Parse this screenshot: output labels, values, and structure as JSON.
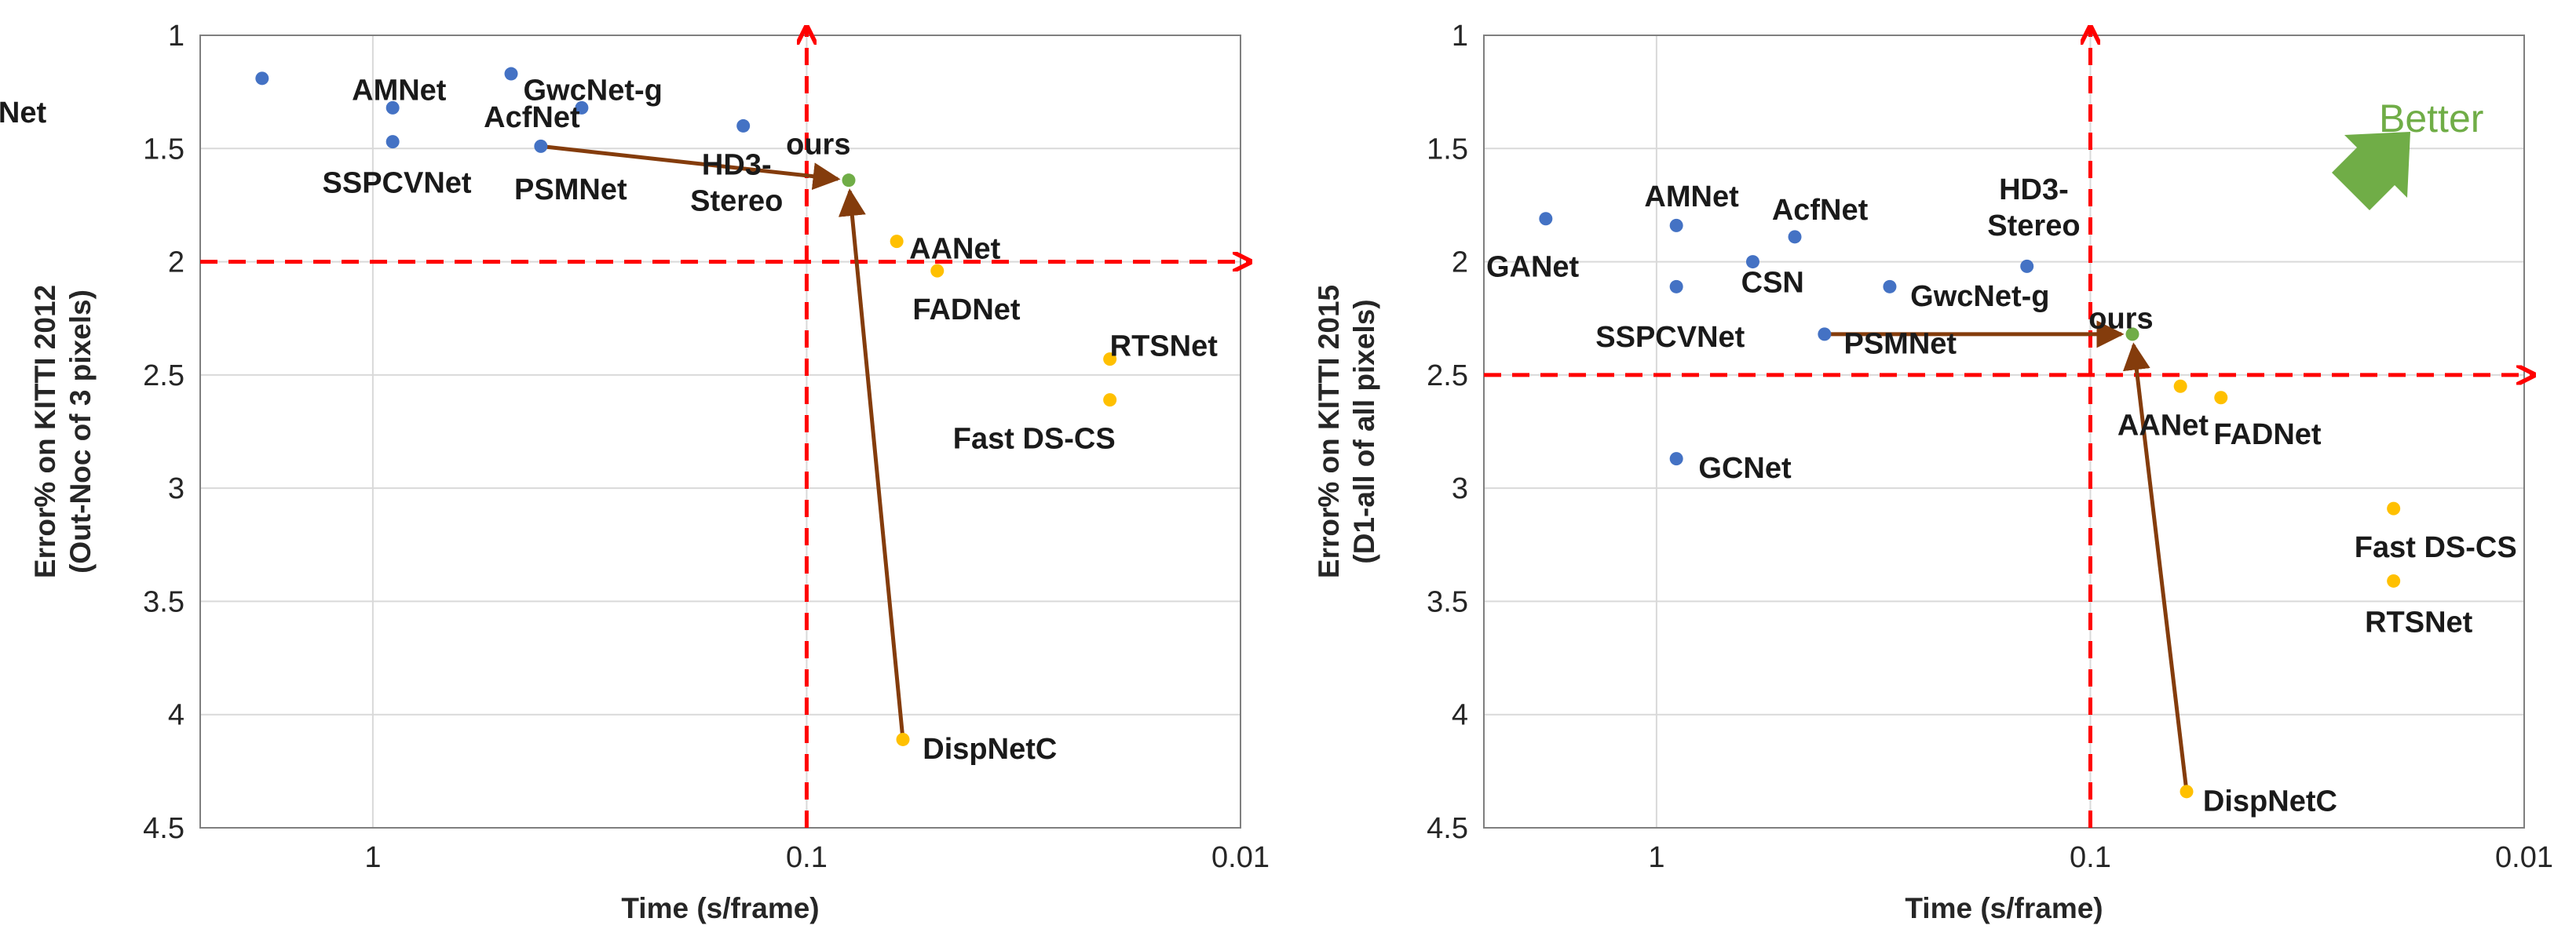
{
  "colors": {
    "blue": "#4472c4",
    "orange": "#ffc000",
    "green": "#70ad47",
    "arrow": "#843c0c",
    "threshold": "#ff0000",
    "grid": "#d9d9d9",
    "frame": "#7f7f7f"
  },
  "chart_data": [
    {
      "type": "scatter",
      "id": "kitti2012",
      "title": "",
      "xlabel": "Time (s/frame)",
      "ylabel_line1": "Error% on KITTI 2012",
      "ylabel_line2": "(Out-Noc of 3 pixels)",
      "x_scale": "log",
      "x_reversed": true,
      "xlim": [
        2.5,
        0.01
      ],
      "ylim": [
        1,
        4.5
      ],
      "y_reversed": true,
      "x_ticks": [
        {
          "v": 1,
          "label": "1"
        },
        {
          "v": 0.1,
          "label": "0.1"
        },
        {
          "v": 0.01,
          "label": "0.01"
        }
      ],
      "y_ticks": [
        {
          "v": 1,
          "label": "1"
        },
        {
          "v": 1.5,
          "label": "1.5"
        },
        {
          "v": 2,
          "label": "2"
        },
        {
          "v": 2.5,
          "label": "2.5"
        },
        {
          "v": 3,
          "label": "3"
        },
        {
          "v": 3.5,
          "label": "3.5"
        },
        {
          "v": 4,
          "label": "4"
        },
        {
          "v": 4.5,
          "label": "4.5"
        }
      ],
      "threshold_x": 0.1,
      "threshold_y": 2.0,
      "points": [
        {
          "name": "GANet",
          "lines": [
            "GANet"
          ],
          "x": 1.8,
          "y": 1.19,
          "color": "blue",
          "lx": -0.04,
          "ly": 1.34,
          "anchor": "middle"
        },
        {
          "name": "AMNet",
          "lines": [
            "AMNet"
          ],
          "x": 0.9,
          "y": 1.32,
          "color": "blue",
          "lx": 0.87,
          "ly": 1.24,
          "anchor": "middle"
        },
        {
          "name": "GwcNet-g",
          "lines": [
            "GwcNet-g"
          ],
          "x": 0.48,
          "y": 1.17,
          "color": "blue",
          "lx": 0.45,
          "ly": 1.24,
          "anchor": "start"
        },
        {
          "name": "AcfNet",
          "lines": [
            "AcfNet"
          ],
          "x": 0.33,
          "y": 1.32,
          "color": "blue",
          "lx": 0.43,
          "ly": 1.36,
          "anchor": "middle"
        },
        {
          "name": "SSPCVNet",
          "lines": [
            "SSPCVNet"
          ],
          "x": 0.9,
          "y": 1.47,
          "color": "blue",
          "lx": 0.88,
          "ly": 1.65,
          "anchor": "middle"
        },
        {
          "name": "PSMNet",
          "lines": [
            "PSMNet"
          ],
          "x": 0.41,
          "y": 1.49,
          "color": "blue",
          "lx": 0.35,
          "ly": 1.68,
          "anchor": "middle"
        },
        {
          "name": "HD3-Stereo",
          "lines": [
            "HD3-",
            "Stereo"
          ],
          "x": 0.14,
          "y": 1.4,
          "color": "blue",
          "lx": 0.145,
          "ly": 1.57,
          "anchor": "middle",
          "ldy": 1.03
        },
        {
          "name": "ours",
          "lines": [
            "ours"
          ],
          "x": 0.08,
          "y": 1.64,
          "color": "green",
          "lx": 0.094,
          "ly": 1.48,
          "anchor": "middle"
        },
        {
          "name": "AANet",
          "lines": [
            "AANet"
          ],
          "x": 0.062,
          "y": 1.91,
          "color": "orange",
          "lx": 0.058,
          "ly": 1.94,
          "anchor": "start"
        },
        {
          "name": "FADNet",
          "lines": [
            "FADNet"
          ],
          "x": 0.05,
          "y": 2.04,
          "color": "orange",
          "lx": 0.057,
          "ly": 2.21,
          "anchor": "start"
        },
        {
          "name": "RTSNet",
          "lines": [
            "RTSNet"
          ],
          "x": 0.02,
          "y": 2.43,
          "color": "orange",
          "lx": 0.02,
          "ly": 2.37,
          "anchor": "start"
        },
        {
          "name": "Fast DS-CS",
          "lines": [
            "Fast DS-CS"
          ],
          "x": 0.02,
          "y": 2.61,
          "color": "orange",
          "lx": 0.046,
          "ly": 2.78,
          "anchor": "start"
        },
        {
          "name": "DispNetC",
          "lines": [
            "DispNetC"
          ],
          "x": 0.06,
          "y": 4.11,
          "color": "orange",
          "lx": 0.054,
          "ly": 4.15,
          "anchor": "start"
        }
      ],
      "arrows": [
        {
          "from": [
            0.41,
            1.49
          ],
          "to": [
            0.08,
            1.64
          ]
        },
        {
          "from": [
            0.06,
            4.11
          ],
          "to": [
            0.08,
            1.64
          ]
        }
      ]
    },
    {
      "type": "scatter",
      "id": "kitti2015",
      "title": "",
      "xlabel": "Time (s/frame)",
      "ylabel_line1": "Error% on KITTI 2015",
      "ylabel_line2": "(D1-all of all pixels)",
      "x_scale": "log",
      "x_reversed": true,
      "xlim": [
        2.5,
        0.01
      ],
      "ylim": [
        1,
        4.5
      ],
      "y_reversed": true,
      "x_ticks": [
        {
          "v": 1,
          "label": "1"
        },
        {
          "v": 0.1,
          "label": "0.1"
        },
        {
          "v": 0.01,
          "label": "0.01"
        }
      ],
      "y_ticks": [
        {
          "v": 1,
          "label": "1"
        },
        {
          "v": 1.5,
          "label": "1.5"
        },
        {
          "v": 2,
          "label": "2"
        },
        {
          "v": 2.5,
          "label": "2.5"
        },
        {
          "v": 3,
          "label": "3"
        },
        {
          "v": 3.5,
          "label": "3.5"
        },
        {
          "v": 4,
          "label": "4"
        },
        {
          "v": 4.5,
          "label": "4.5"
        }
      ],
      "threshold_x": 0.1,
      "threshold_y": 2.5,
      "annotation": "Better",
      "points": [
        {
          "name": "GANet",
          "lines": [
            "GANet"
          ],
          "x": 1.8,
          "y": 1.81,
          "color": "blue",
          "lx": 1.93,
          "ly": 2.02,
          "anchor": "middle"
        },
        {
          "name": "AMNet",
          "lines": [
            "AMNet"
          ],
          "x": 0.9,
          "y": 1.84,
          "color": "blue",
          "lx": 0.83,
          "ly": 1.71,
          "anchor": "middle"
        },
        {
          "name": "AcfNet",
          "lines": [
            "AcfNet"
          ],
          "x": 0.48,
          "y": 1.89,
          "color": "blue",
          "lx": 0.42,
          "ly": 1.77,
          "anchor": "middle"
        },
        {
          "name": "CSN",
          "lines": [
            "CSN"
          ],
          "x": 0.6,
          "y": 2.0,
          "color": "blue",
          "lx": 0.54,
          "ly": 2.09,
          "anchor": "middle"
        },
        {
          "name": "GwcNet-g",
          "lines": [
            "GwcNet-g"
          ],
          "x": 0.29,
          "y": 2.11,
          "color": "blue",
          "lx": 0.26,
          "ly": 2.15,
          "anchor": "start"
        },
        {
          "name": "SSPCVNet",
          "lines": [
            "SSPCVNet"
          ],
          "x": 0.9,
          "y": 2.11,
          "color": "blue",
          "lx": 0.93,
          "ly": 2.33,
          "anchor": "middle"
        },
        {
          "name": "PSMNet",
          "lines": [
            "PSMNet"
          ],
          "x": 0.41,
          "y": 2.32,
          "color": "blue",
          "lx": 0.37,
          "ly": 2.36,
          "anchor": "start"
        },
        {
          "name": "HD3-Stereo",
          "lines": [
            "HD3-",
            "Stereo"
          ],
          "x": 0.14,
          "y": 2.02,
          "color": "blue",
          "lx": 0.135,
          "ly": 1.68,
          "anchor": "middle",
          "ldy": 0.2
        },
        {
          "name": "ours",
          "lines": [
            "ours"
          ],
          "x": 0.08,
          "y": 2.32,
          "color": "green",
          "lx": 0.085,
          "ly": 2.25,
          "anchor": "middle"
        },
        {
          "name": "GCNet",
          "lines": [
            "GCNet"
          ],
          "x": 0.9,
          "y": 2.87,
          "color": "blue",
          "lx": 0.8,
          "ly": 2.91,
          "anchor": "start"
        },
        {
          "name": "AANet",
          "lines": [
            "AANet"
          ],
          "x": 0.062,
          "y": 2.55,
          "color": "orange",
          "lx": 0.068,
          "ly": 2.72,
          "anchor": "middle"
        },
        {
          "name": "FADNet",
          "lines": [
            "FADNet"
          ],
          "x": 0.05,
          "y": 2.6,
          "color": "orange",
          "lx": 0.052,
          "ly": 2.76,
          "anchor": "start"
        },
        {
          "name": "Fast DS-CS",
          "lines": [
            "Fast DS-CS"
          ],
          "x": 0.02,
          "y": 3.09,
          "color": "orange",
          "lx": 0.016,
          "ly": 3.26,
          "anchor": "middle"
        },
        {
          "name": "RTSNet",
          "lines": [
            "RTSNet"
          ],
          "x": 0.02,
          "y": 3.41,
          "color": "orange",
          "lx": 0.0175,
          "ly": 3.59,
          "anchor": "middle"
        },
        {
          "name": "DispNetC",
          "lines": [
            "DispNetC"
          ],
          "x": 0.06,
          "y": 4.34,
          "color": "orange",
          "lx": 0.055,
          "ly": 4.38,
          "anchor": "start"
        }
      ],
      "arrows": [
        {
          "from": [
            0.41,
            2.32
          ],
          "to": [
            0.08,
            2.32
          ]
        },
        {
          "from": [
            0.06,
            4.34
          ],
          "to": [
            0.08,
            2.32
          ]
        }
      ]
    }
  ]
}
